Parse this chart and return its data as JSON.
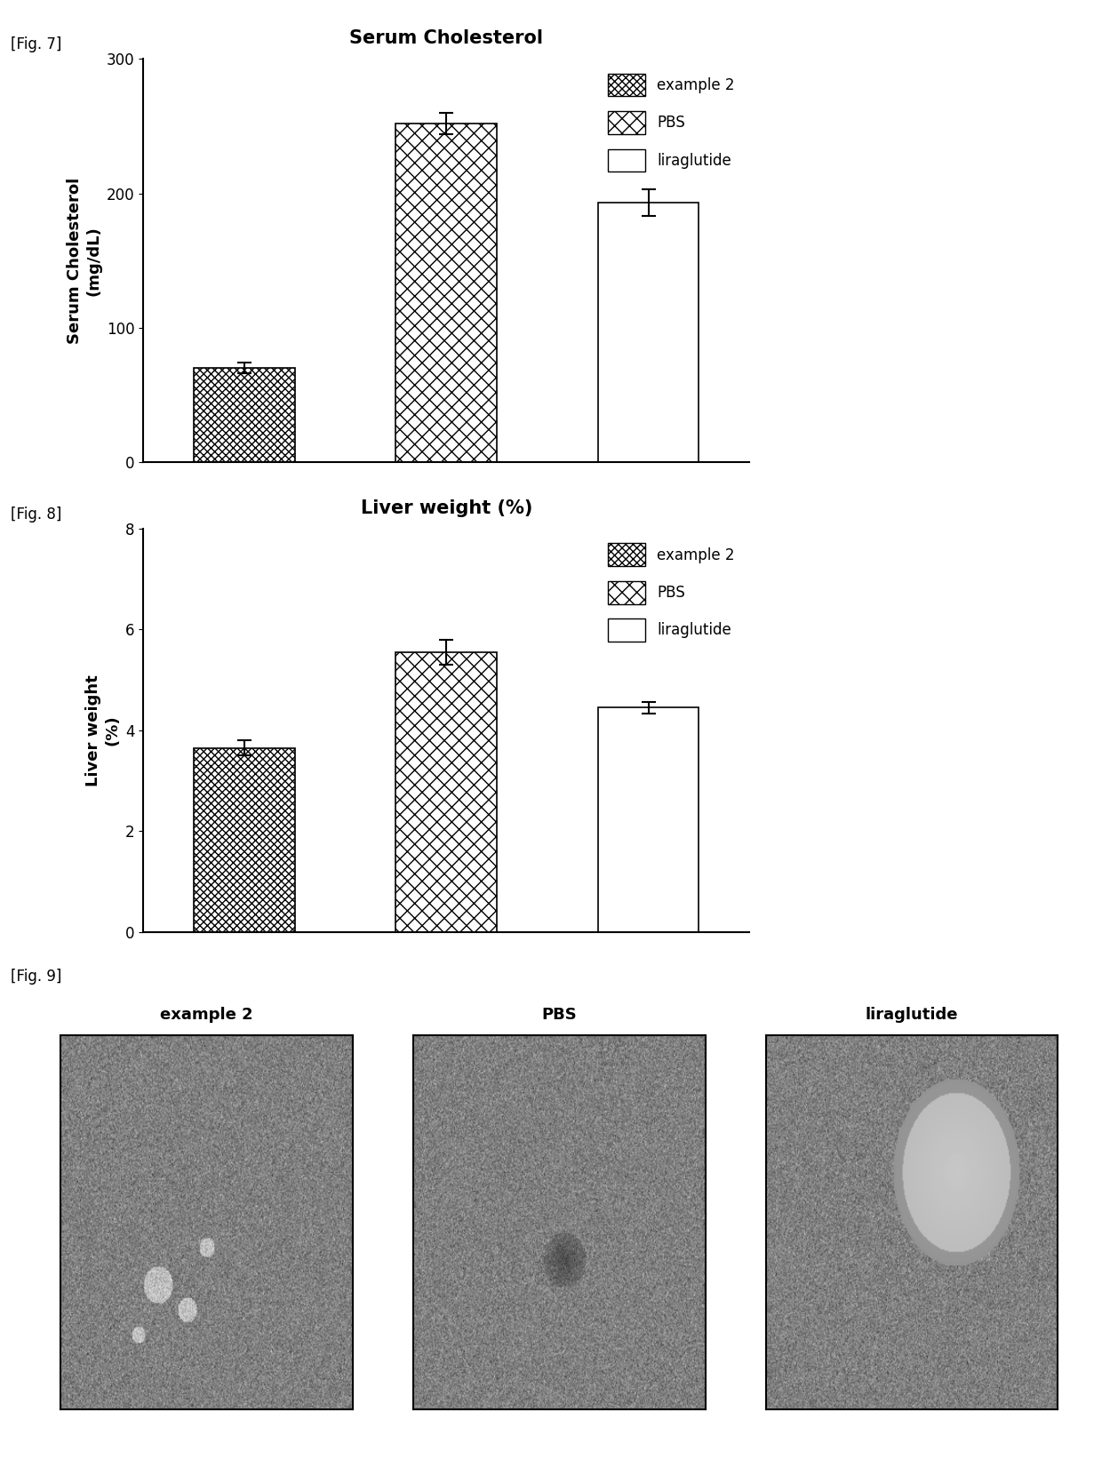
{
  "fig7_title": "Serum Cholesterol",
  "fig7_ylabel": "Serum Cholesterol\n(mg/dL)",
  "fig7_ylim": [
    0,
    300
  ],
  "fig7_yticks": [
    0,
    100,
    200,
    300
  ],
  "fig7_values": [
    70,
    252,
    193
  ],
  "fig7_errors": [
    4,
    8,
    10
  ],
  "fig8_title": "Liver weight (%)",
  "fig8_ylabel": "Liver weight\n(%)",
  "fig8_ylim": [
    0,
    8
  ],
  "fig8_yticks": [
    0,
    2,
    4,
    6,
    8
  ],
  "fig8_values": [
    3.65,
    5.55,
    4.45
  ],
  "fig8_errors": [
    0.15,
    0.25,
    0.12
  ],
  "categories": [
    "example 2",
    "PBS",
    "liraglutide"
  ],
  "fig7_label": "[Fig. 7]",
  "fig8_label": "[Fig. 8]",
  "fig9_label": "[Fig. 9]",
  "fig9_labels": [
    "example 2",
    "PBS",
    "liraglutide"
  ],
  "bg_color": "#ffffff",
  "title_fontsize": 15,
  "label_fontsize": 13,
  "tick_fontsize": 12,
  "figlabel_fontsize": 12
}
